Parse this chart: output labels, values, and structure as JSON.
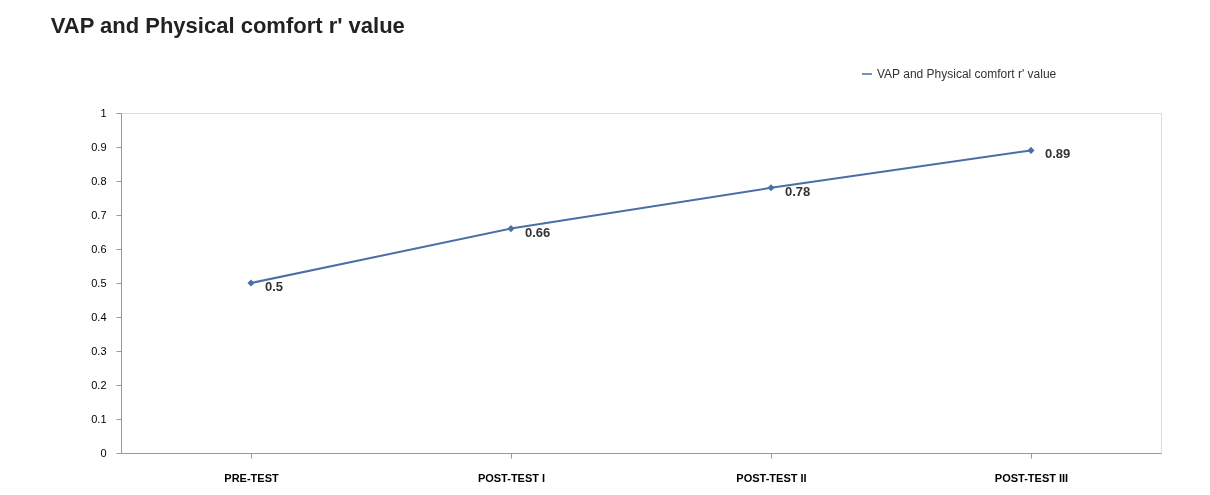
{
  "chart_data": {
    "type": "line",
    "title": "VAP and Physical comfort r' value",
    "categories": [
      "PRE-TEST",
      "POST-TEST I",
      "POST-TEST II",
      "POST-TEST III"
    ],
    "series": [
      {
        "name": "VAP and Physical comfort r' value",
        "color": "#4a6fa5",
        "values": [
          0.5,
          0.66,
          0.78,
          0.89
        ]
      }
    ],
    "ylim": [
      0,
      1
    ],
    "yticks": [
      0,
      0.1,
      0.2,
      0.3,
      0.4,
      0.5,
      0.6,
      0.7,
      0.8,
      0.9,
      1
    ],
    "data_labels": true,
    "grid": false,
    "legend": "top right",
    "marker": "diamond",
    "line_style": "solid"
  }
}
